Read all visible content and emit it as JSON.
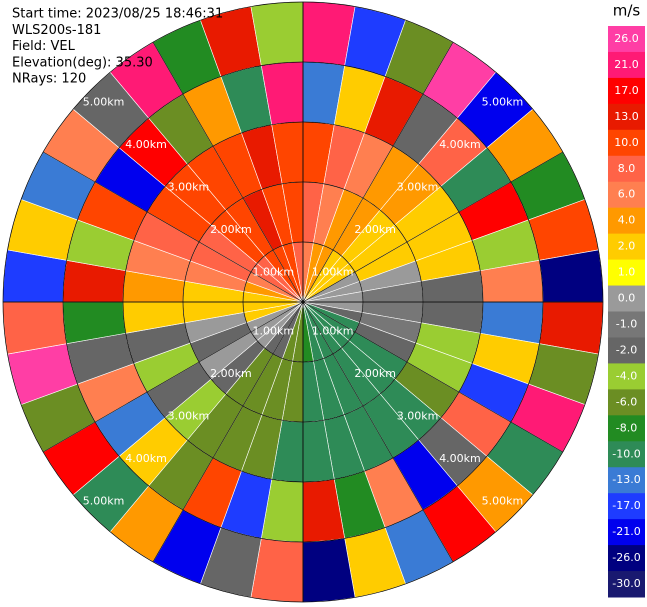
{
  "chart_data": {
    "type": "ppi",
    "info_lines": [
      "Start time: 2023/08/25 18:46:31",
      "WLS200s-181",
      "Field: VEL",
      "Elevation(deg): 35.30",
      "NRays: 120"
    ],
    "rings": [
      {
        "value": 1,
        "label": "1.00km"
      },
      {
        "value": 2,
        "label": "2.00km"
      },
      {
        "value": 3,
        "label": "3.00km"
      },
      {
        "value": 4,
        "label": "4.00km"
      },
      {
        "value": 5,
        "label": "5.00km"
      }
    ],
    "azimuths": [
      5,
      15,
      25,
      35,
      45,
      55,
      65,
      75,
      85,
      95,
      105,
      115,
      125,
      135,
      145,
      155,
      165,
      175,
      185,
      195,
      205,
      215,
      225,
      235,
      245,
      255,
      265,
      275,
      285,
      295,
      305,
      315,
      325,
      335,
      345,
      355
    ],
    "ranges": [
      0.5,
      1.5,
      2.5,
      3.5,
      4.5
    ],
    "values": [
      [
        6,
        8,
        10,
        -13,
        21
      ],
      [
        4,
        6,
        8,
        2,
        -17
      ],
      [
        4,
        4,
        6,
        13,
        -6
      ],
      [
        2,
        4,
        4,
        -2,
        26
      ],
      [
        2,
        2,
        4,
        8,
        -21
      ],
      [
        2,
        2,
        2,
        -10,
        4
      ],
      [
        0,
        2,
        2,
        17,
        -8
      ],
      [
        0,
        0,
        2,
        -4,
        10
      ],
      [
        0,
        -1,
        -2,
        6,
        -26
      ],
      [
        0,
        -1,
        -2,
        -13,
        13
      ],
      [
        -2,
        -1,
        -4,
        2,
        -6
      ],
      [
        -10,
        -2,
        -4,
        -17,
        21
      ],
      [
        -10,
        -10,
        -6,
        8,
        -10
      ],
      [
        -10,
        -10,
        -10,
        -2,
        4
      ],
      [
        -10,
        -10,
        -10,
        -21,
        17
      ],
      [
        -10,
        -10,
        -10,
        6,
        -13
      ],
      [
        -10,
        -10,
        -10,
        -8,
        2
      ],
      [
        -8,
        -10,
        -10,
        13,
        -26
      ],
      [
        -6,
        -6,
        -10,
        -4,
        8
      ],
      [
        -6,
        -6,
        -6,
        -17,
        -2
      ],
      [
        -2,
        -6,
        -6,
        10,
        -21
      ],
      [
        -2,
        -6,
        -6,
        -6,
        4
      ],
      [
        0,
        -2,
        -4,
        2,
        -10
      ],
      [
        0,
        0,
        -2,
        -13,
        17
      ],
      [
        0,
        -2,
        -4,
        6,
        -6
      ],
      [
        2,
        0,
        -2,
        -2,
        26
      ],
      [
        2,
        2,
        2,
        -8,
        8
      ],
      [
        2,
        2,
        4,
        13,
        -17
      ],
      [
        4,
        6,
        6,
        -4,
        2
      ],
      [
        6,
        8,
        8,
        10,
        -13
      ],
      [
        8,
        8,
        10,
        -21,
        6
      ],
      [
        8,
        10,
        10,
        17,
        -2
      ],
      [
        10,
        10,
        10,
        -6,
        21
      ],
      [
        10,
        13,
        10,
        4,
        -8
      ],
      [
        10,
        10,
        13,
        -10,
        13
      ],
      [
        8,
        10,
        10,
        21,
        -4
      ]
    ],
    "colorbar": {
      "unit": "m/s",
      "ticks": [
        {
          "value": 26,
          "label": "26.0"
        },
        {
          "value": 21,
          "label": "21.0"
        },
        {
          "value": 17,
          "label": "17.0"
        },
        {
          "value": 13,
          "label": "13.0"
        },
        {
          "value": 10,
          "label": "10.0"
        },
        {
          "value": 8,
          "label": "8.0"
        },
        {
          "value": 6,
          "label": "6.0"
        },
        {
          "value": 4,
          "label": "4.0"
        },
        {
          "value": 2,
          "label": "2.0"
        },
        {
          "value": 1,
          "label": "1.0"
        },
        {
          "value": 0,
          "label": "0.0"
        },
        {
          "value": -1,
          "label": "-1.0"
        },
        {
          "value": -2,
          "label": "-2.0"
        },
        {
          "value": -4,
          "label": "-4.0"
        },
        {
          "value": -6,
          "label": "-6.0"
        },
        {
          "value": -8,
          "label": "-8.0"
        },
        {
          "value": -10,
          "label": "-10.0"
        },
        {
          "value": -13,
          "label": "-13.0"
        },
        {
          "value": -17,
          "label": "-17.0"
        },
        {
          "value": -21,
          "label": "-21.0"
        },
        {
          "value": -26,
          "label": "-26.0"
        },
        {
          "value": -30,
          "label": "-30.0"
        }
      ],
      "colors": [
        "#ff3ea5",
        "#ff1a75",
        "#ff0000",
        "#e81a00",
        "#ff4500",
        "#ff6347",
        "#ff7f50",
        "#ff9900",
        "#ffcc00",
        "#ffff00",
        "#9a9a9a",
        "#777777",
        "#666666",
        "#9acd32",
        "#6b8e23",
        "#228b22",
        "#2e8b57",
        "#3a7bd5",
        "#1e3cff",
        "#0000ee",
        "#000080",
        "#191970"
      ]
    }
  }
}
